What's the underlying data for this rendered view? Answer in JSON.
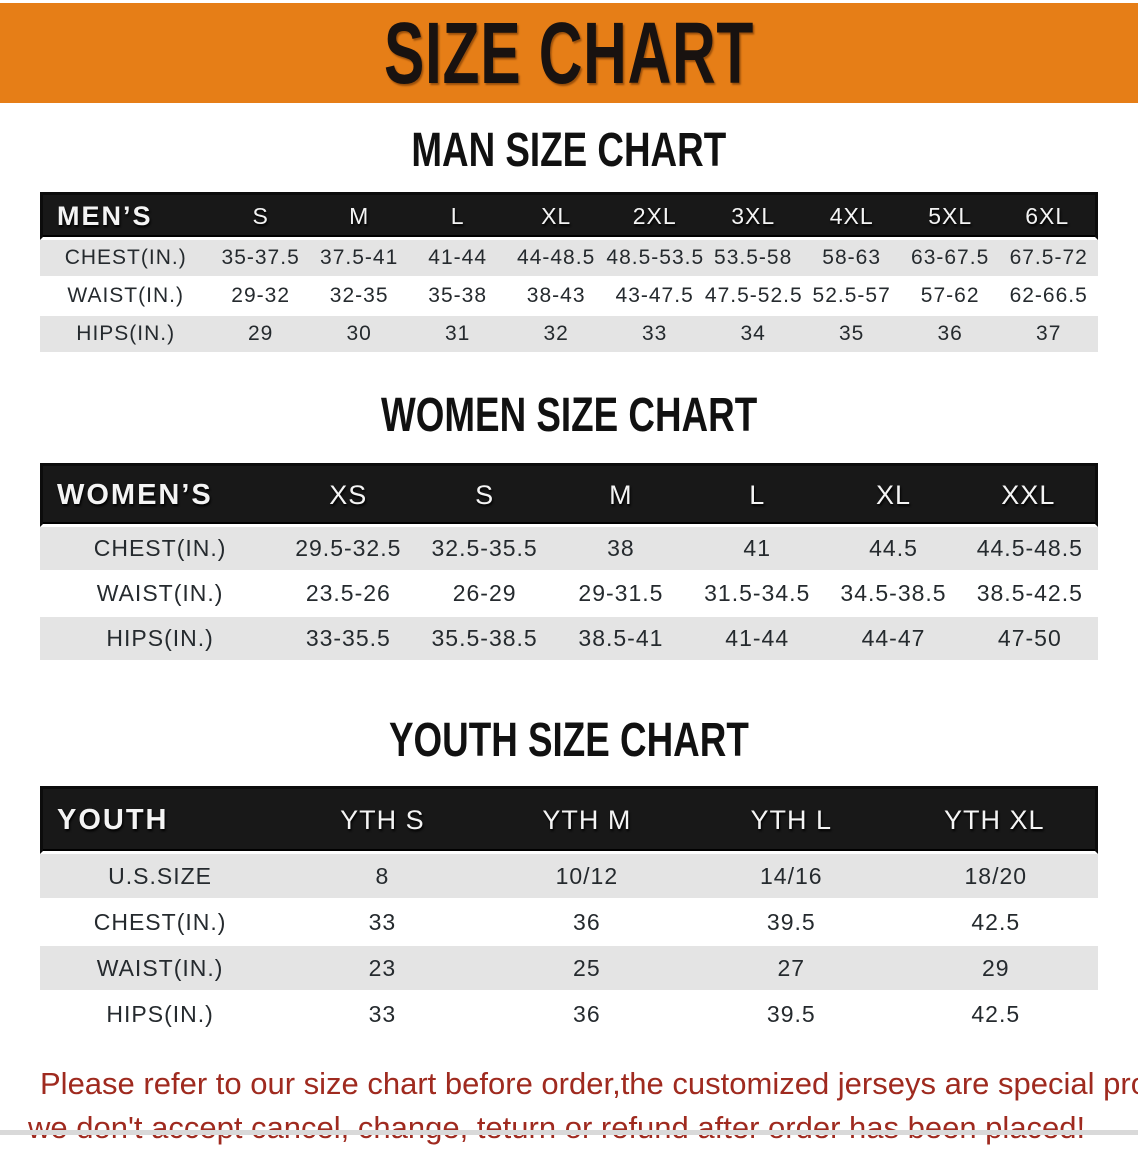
{
  "banner": {
    "title": "SIZE CHART"
  },
  "headings": {
    "men": "MAN SIZE CHART",
    "women": "WOMEN SIZE CHART",
    "youth": "YOUTH SIZE CHART"
  },
  "tables": {
    "men": {
      "header": [
        "MEN’S",
        "S",
        "M",
        "L",
        "XL",
        "2XL",
        "3XL",
        "4XL",
        "5XL",
        "6XL"
      ],
      "rows": [
        [
          "CHEST(IN.)",
          "35-37.5",
          "37.5-41",
          "41-44",
          "44-48.5",
          "48.5-53.5",
          "53.5-58",
          "58-63",
          "63-67.5",
          "67.5-72"
        ],
        [
          "WAIST(IN.)",
          "29-32",
          "32-35",
          "35-38",
          "38-43",
          "43-47.5",
          "47.5-52.5",
          "52.5-57",
          "57-62",
          "62-66.5"
        ],
        [
          "HIPS(IN.)",
          "29",
          "30",
          "31",
          "32",
          "33",
          "34",
          "35",
          "36",
          "37"
        ]
      ]
    },
    "women": {
      "header": [
        "WOMEN’S",
        "XS",
        "S",
        "M",
        "L",
        "XL",
        "XXL"
      ],
      "rows": [
        [
          "CHEST(IN.)",
          "29.5-32.5",
          "32.5-35.5",
          "38",
          "41",
          "44.5",
          "44.5-48.5"
        ],
        [
          "WAIST(IN.)",
          "23.5-26",
          "26-29",
          "29-31.5",
          "31.5-34.5",
          "34.5-38.5",
          "38.5-42.5"
        ],
        [
          "HIPS(IN.)",
          "33-35.5",
          "35.5-38.5",
          "38.5-41",
          "41-44",
          "44-47",
          "47-50"
        ]
      ]
    },
    "youth": {
      "header": [
        "YOUTH",
        "YTH S",
        "YTH M",
        "YTH L",
        "YTH XL"
      ],
      "rows": [
        [
          "U.S.SIZE",
          "8",
          "10/12",
          "14/16",
          "18/20"
        ],
        [
          "CHEST(IN.)",
          "33",
          "36",
          "39.5",
          "42.5"
        ],
        [
          "WAIST(IN.)",
          "23",
          "25",
          "27",
          "29"
        ],
        [
          "HIPS(IN.)",
          "33",
          "36",
          "39.5",
          "42.5"
        ]
      ]
    }
  },
  "disclaimer": {
    "line1": "Please refer to our size chart before order,the customized jerseys are special products,",
    "line2": "we don't accept cancel, change, teturn or refund after order has been placed!"
  },
  "colors": {
    "banner_bg": "#e67e17",
    "table_header_bg": "#181818",
    "row_stripe": "#e4e4e4",
    "disclaimer_text": "#9f2a1f"
  }
}
